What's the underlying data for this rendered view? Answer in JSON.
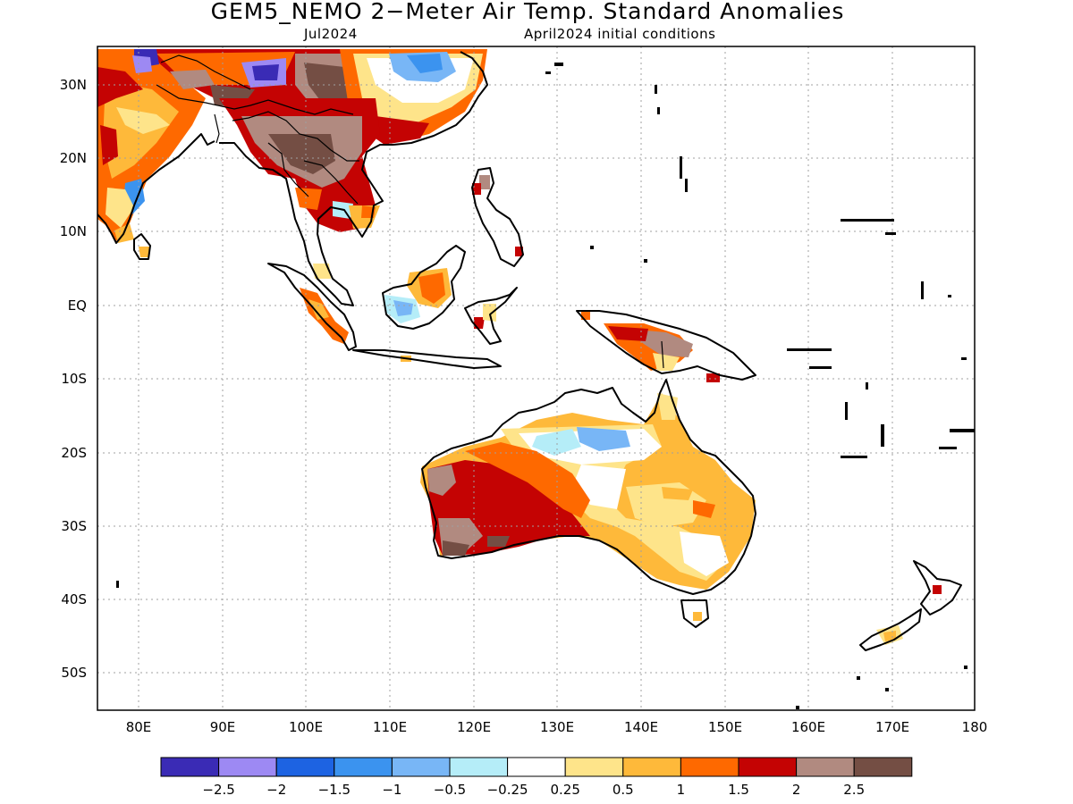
{
  "title": "GEM5_NEMO 2−Meter Air Temp. Standard Anomalies",
  "valid_month": "Jul2024",
  "initial_conditions": "April2024 initial conditions",
  "lat_labels": [
    "30N",
    "20N",
    "10N",
    "EQ",
    "10S",
    "20S",
    "30S",
    "40S",
    "50S"
  ],
  "lon_labels": [
    "80E",
    "90E",
    "100E",
    "110E",
    "120E",
    "130E",
    "140E",
    "150E",
    "160E",
    "170E",
    "180"
  ],
  "colorbar": {
    "colors": [
      "#3a2bb5",
      "#9d89f3",
      "#1d63e2",
      "#3b93ef",
      "#78b6f6",
      "#b5edf8",
      "#ffffff",
      "#fee48a",
      "#feb93a",
      "#fe6900",
      "#c40303",
      "#b18a80",
      "#744e44"
    ],
    "labels": [
      "−2.5",
      "−2",
      "−1.5",
      "−1",
      "−0.5",
      "−0.25",
      "0.25",
      "0.5",
      "1",
      "1.5",
      "2",
      "2.5"
    ]
  },
  "colors": {
    "coast": "#000000",
    "grid": "#a0a0a0"
  }
}
